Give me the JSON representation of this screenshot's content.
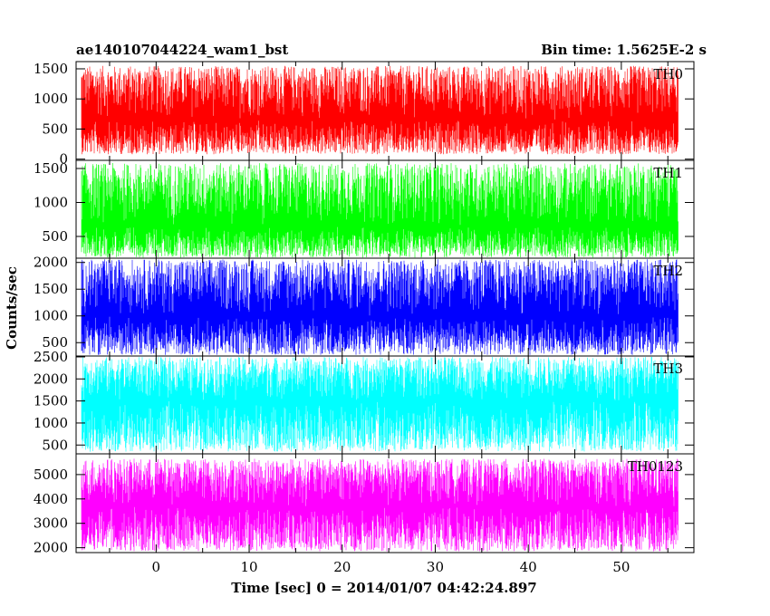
{
  "header": {
    "title": "ae140107044224_wam1_bst",
    "bin_time": "Bin time: 1.5625E-2 s"
  },
  "chart_data": {
    "type": "line",
    "xlabel": "Time [sec] 0 = 2014/01/07 04:42:24.897",
    "ylabel": "Counts/sec",
    "xlim": [
      -8.6,
      57.8
    ],
    "xticks": [
      0,
      10,
      20,
      30,
      40,
      50
    ],
    "grid": false,
    "panels": [
      {
        "name": "TH0",
        "color": "#ff0000",
        "ylim": [
          -20,
          1620
        ],
        "yticks": [
          0,
          500,
          1000,
          1500
        ],
        "series": {
          "x": [
            -8,
            56
          ],
          "base": 650,
          "min": 80,
          "max": 1550
        }
      },
      {
        "name": "TH1",
        "color": "#00ff00",
        "ylim": [
          180,
          1620
        ],
        "yticks": [
          500,
          1000,
          1500
        ],
        "series": {
          "x": [
            -8,
            56
          ],
          "base": 650,
          "min": 190,
          "max": 1580
        }
      },
      {
        "name": "TH2",
        "color": "#0000ff",
        "ylim": [
          250,
          2080
        ],
        "yticks": [
          500,
          1000,
          1500,
          2000
        ],
        "series": {
          "x": [
            -8,
            56
          ],
          "base": 1000,
          "min": 270,
          "max": 2060
        }
      },
      {
        "name": "TH3",
        "color": "#00ffff",
        "ylim": [
          300,
          2520
        ],
        "yticks": [
          500,
          1000,
          1500,
          2000,
          2500
        ],
        "series": {
          "x": [
            -8,
            56
          ],
          "base": 1500,
          "min": 350,
          "max": 2500
        }
      },
      {
        "name": "TH0123",
        "color": "#ff00ff",
        "ylim": [
          1800,
          5850
        ],
        "yticks": [
          2000,
          3000,
          4000,
          5000
        ],
        "series": {
          "x": [
            -8,
            56
          ],
          "base": 3700,
          "min": 1850,
          "max": 5650
        }
      }
    ]
  }
}
